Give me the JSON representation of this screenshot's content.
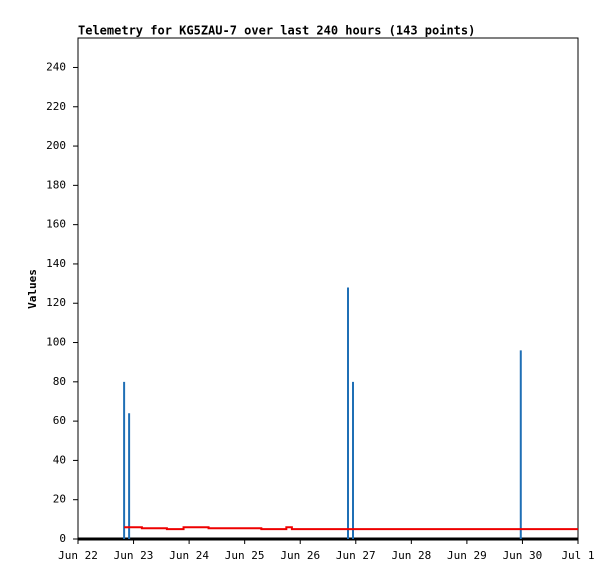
{
  "chart_data": {
    "type": "line",
    "title": "Telemetry for KG5ZAU-7 over last 240 hours (143 points)",
    "y_label": "Values",
    "xlim": [
      0,
      9
    ],
    "xticks": [
      {
        "value": 0,
        "label": "Jun 22"
      },
      {
        "value": 1,
        "label": "Jun 23"
      },
      {
        "value": 2,
        "label": "Jun 24"
      },
      {
        "value": 3,
        "label": "Jun 25"
      },
      {
        "value": 4,
        "label": "Jun 26"
      },
      {
        "value": 5,
        "label": "Jun 27"
      },
      {
        "value": 6,
        "label": "Jun 28"
      },
      {
        "value": 7,
        "label": "Jun 29"
      },
      {
        "value": 8,
        "label": "Jun 30"
      },
      {
        "value": 9,
        "label": "Jul 1"
      }
    ],
    "ylim": [
      0,
      255
    ],
    "yticks": [
      0,
      20,
      40,
      60,
      80,
      100,
      120,
      140,
      160,
      180,
      200,
      220,
      240
    ],
    "grid": false,
    "series": [
      {
        "style": "impulse",
        "color": "#1f6fb5",
        "x": [
          0.83,
          0.92,
          4.86,
          4.95,
          7.97
        ],
        "values": [
          80,
          64,
          128,
          80,
          96
        ]
      },
      {
        "style": "line",
        "color": "#ee0000",
        "x": [
          0.83,
          1.15,
          1.15,
          1.6,
          1.6,
          1.9,
          1.9,
          2.35,
          2.35,
          3.3,
          3.3,
          3.75,
          3.75,
          3.85,
          3.85,
          9
        ],
        "values": [
          6,
          6,
          5.5,
          5.5,
          5,
          5,
          6,
          6,
          5.5,
          5.5,
          5,
          5,
          6,
          6,
          5,
          5
        ]
      }
    ]
  }
}
